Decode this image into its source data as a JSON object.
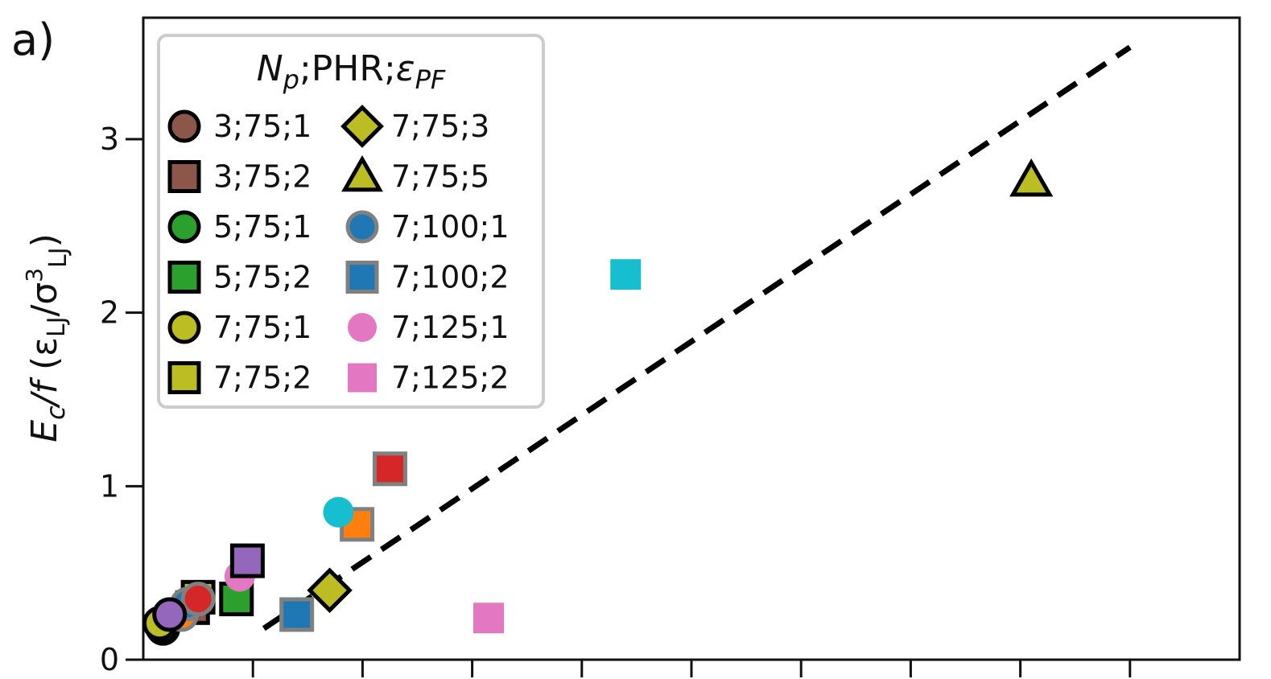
{
  "panel_label": "a)",
  "chart_data": {
    "type": "scatter",
    "xlabel": "",
    "ylabel": "E_c/f (ε_LJ/σ_LJ^3)",
    "ylabel_parts": {
      "main": "E",
      "main_sub": "c",
      "slash_f": "/f",
      "open": " (ε",
      "eps_sub": "LJ",
      "mid": "/σ",
      "sig_sup": "3",
      "sig_sub": "LJ",
      "close": ")"
    },
    "ylim": [
      0,
      3.7
    ],
    "xlim": [
      0,
      10
    ],
    "y_ticks": [
      0,
      1,
      2,
      3
    ],
    "y_tick_labels": [
      "0",
      "1",
      "2",
      "3"
    ],
    "x_ticks": [
      1,
      2,
      3,
      4,
      5,
      6,
      7,
      8,
      9
    ],
    "x_tick_labels": [],
    "grid": false,
    "legend": {
      "title": "N_p;PHR;ε_PF",
      "title_parts": {
        "n": "N",
        "n_sub": "p",
        "mid": ";PHR;",
        "eps": "ε",
        "eps_sub": "PF"
      },
      "placement": "top-left",
      "entries": [
        {
          "label": "3;75;1",
          "marker": "circle",
          "fill": "#8c564b",
          "edge": "#000000"
        },
        {
          "label": "3;75;2",
          "marker": "square",
          "fill": "#8c564b",
          "edge": "#000000"
        },
        {
          "label": "5;75;1",
          "marker": "circle",
          "fill": "#2ca02c",
          "edge": "#000000"
        },
        {
          "label": "5;75;2",
          "marker": "square",
          "fill": "#2ca02c",
          "edge": "#000000"
        },
        {
          "label": "7;75;1",
          "marker": "circle",
          "fill": "#bcbd22",
          "edge": "#000000"
        },
        {
          "label": "7;75;2",
          "marker": "square",
          "fill": "#bcbd22",
          "edge": "#000000"
        },
        {
          "label": "7;75;3",
          "marker": "diamond",
          "fill": "#bcbd22",
          "edge": "#000000"
        },
        {
          "label": "7;75;5",
          "marker": "triangle",
          "fill": "#bcbd22",
          "edge": "#000000"
        },
        {
          "label": "7;100;1",
          "marker": "circle",
          "fill": "#1f77b4",
          "edge": "#808080"
        },
        {
          "label": "7;100;2",
          "marker": "square",
          "fill": "#1f77b4",
          "edge": "#808080"
        },
        {
          "label": "7;125;1",
          "marker": "circle",
          "fill": "#e377c2",
          "edge": "none"
        },
        {
          "label": "7;125;2",
          "marker": "square",
          "fill": "#e377c2",
          "edge": "none"
        }
      ]
    },
    "fit_line": {
      "style": "dashed",
      "color": "#000000",
      "x": [
        1.1,
        9.0
      ],
      "y": [
        0.18,
        3.53
      ]
    },
    "points": [
      {
        "x": 0.18,
        "y": 0.18,
        "marker": "circle",
        "fill": "#8c564b",
        "edge": "#000000"
      },
      {
        "x": 0.45,
        "y": 0.3,
        "marker": "square",
        "fill": "#8c564b",
        "edge": "#000000"
      },
      {
        "x": 0.17,
        "y": 0.19,
        "marker": "circle",
        "fill": "#2ca02c",
        "edge": "#000000"
      },
      {
        "x": 0.85,
        "y": 0.35,
        "marker": "square",
        "fill": "#2ca02c",
        "edge": "#000000"
      },
      {
        "x": 0.15,
        "y": 0.21,
        "marker": "circle",
        "fill": "#bcbd22",
        "edge": "#000000"
      },
      {
        "x": 0.5,
        "y": 0.36,
        "marker": "square",
        "fill": "#bcbd22",
        "edge": "#000000"
      },
      {
        "x": 1.7,
        "y": 0.4,
        "marker": "diamond",
        "fill": "#bcbd22",
        "edge": "#000000"
      },
      {
        "x": 8.1,
        "y": 2.76,
        "marker": "triangle",
        "fill": "#bcbd22",
        "edge": "#000000"
      },
      {
        "x": 0.35,
        "y": 0.26,
        "marker": "circle",
        "fill": "#ff7f0e",
        "edge": "#808080"
      },
      {
        "x": 0.4,
        "y": 0.32,
        "marker": "circle",
        "fill": "#1f77b4",
        "edge": "#808080"
      },
      {
        "x": 1.4,
        "y": 0.26,
        "marker": "square",
        "fill": "#1f77b4",
        "edge": "#808080"
      },
      {
        "x": 1.95,
        "y": 0.78,
        "marker": "square",
        "fill": "#ff7f0e",
        "edge": "#808080"
      },
      {
        "x": 2.25,
        "y": 1.1,
        "marker": "square",
        "fill": "#d62728",
        "edge": "#808080"
      },
      {
        "x": 0.5,
        "y": 0.35,
        "marker": "circle",
        "fill": "#d62728",
        "edge": "#808080"
      },
      {
        "x": 0.88,
        "y": 0.48,
        "marker": "circle",
        "fill": "#e377c2",
        "edge": "none"
      },
      {
        "x": 3.15,
        "y": 0.24,
        "marker": "square",
        "fill": "#e377c2",
        "edge": "none"
      },
      {
        "x": 1.78,
        "y": 0.85,
        "marker": "circle",
        "fill": "#17becf",
        "edge": "none"
      },
      {
        "x": 4.4,
        "y": 2.22,
        "marker": "square",
        "fill": "#17becf",
        "edge": "none"
      },
      {
        "x": 0.24,
        "y": 0.26,
        "marker": "circle",
        "fill": "#9467bd",
        "edge": "#000000"
      },
      {
        "x": 0.95,
        "y": 0.57,
        "marker": "square",
        "fill": "#9467bd",
        "edge": "#000000"
      }
    ]
  }
}
